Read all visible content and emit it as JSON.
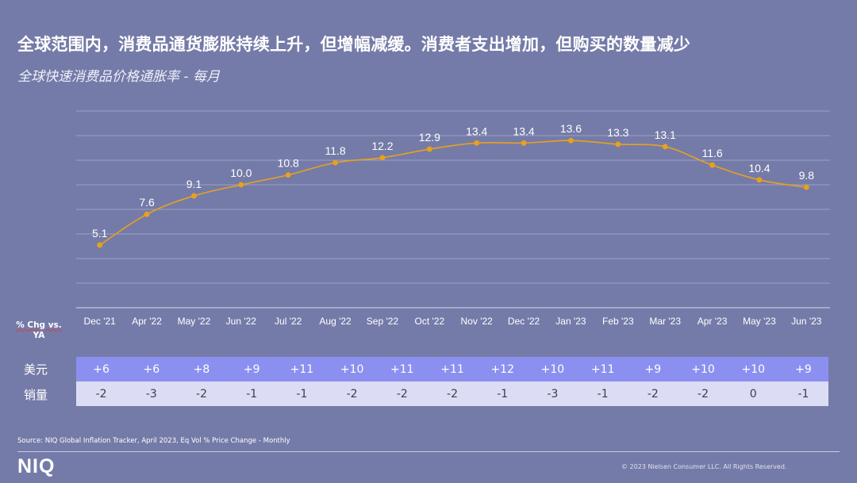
{
  "title": "全球范围内，消费品通货膨胀持续上升，但增幅减缓。消费者支出增加，但购买的数量减少",
  "subtitle": "全球快速消费品价格通胀率 - 每月",
  "chart_data": {
    "type": "line",
    "title": "全球快速消费品价格通胀率 - 每月",
    "categories": [
      "Dec '21",
      "Apr '22",
      "May '22",
      "Jun '22",
      "Jul '22",
      "Aug '22",
      "Sep '22",
      "Oct '22",
      "Nov '22",
      "Dec '22",
      "Jan '23",
      "Feb '23",
      "Mar '23",
      "Apr '23",
      "May '23",
      "Jun '23"
    ],
    "values": [
      5.1,
      7.6,
      9.1,
      10.0,
      10.8,
      11.8,
      12.2,
      12.9,
      13.4,
      13.4,
      13.6,
      13.3,
      13.1,
      11.6,
      10.4,
      9.8
    ],
    "value_labels": [
      "5.1",
      "7.6",
      "9.1",
      "10.0",
      "10.8",
      "11.8",
      "12.2",
      "12.9",
      "13.4",
      "13.4",
      "13.6",
      "13.3",
      "13.1",
      "11.6",
      "10.4",
      "9.8"
    ],
    "ylim": [
      0,
      16
    ],
    "grid": true,
    "line_color": "#e8a21a",
    "xlabel": "",
    "ylabel": ""
  },
  "table": {
    "header": "% Chg vs. YA",
    "header_line1": "% Chg vs.",
    "header_line2": "YA",
    "rows": [
      {
        "label": "美元",
        "values": [
          "+6",
          "+6",
          "+8",
          "+9",
          "+11",
          "+10",
          "+11",
          "+11",
          "+12",
          "+10",
          "+11",
          "+9",
          "+10",
          "+10",
          "+9"
        ]
      },
      {
        "label": "销量",
        "values": [
          "-2",
          "-3",
          "-2",
          "-1",
          "-1",
          "-2",
          "-2",
          "-2",
          "-1",
          "-3",
          "-1",
          "-2",
          "-2",
          "0",
          "-1"
        ]
      }
    ]
  },
  "source": "Source: NIQ Global Inflation Tracker, April 2023, Eq Vol % Price Change - Monthly",
  "logo": "NIQ",
  "copyright": "© 2023 Nielsen Consumer LLC. All Rights Reserved.",
  "colors": {
    "background": "#757ba8",
    "line": "#e8a21a",
    "row1": "#8b90f0",
    "row2": "#dcdcf4"
  }
}
